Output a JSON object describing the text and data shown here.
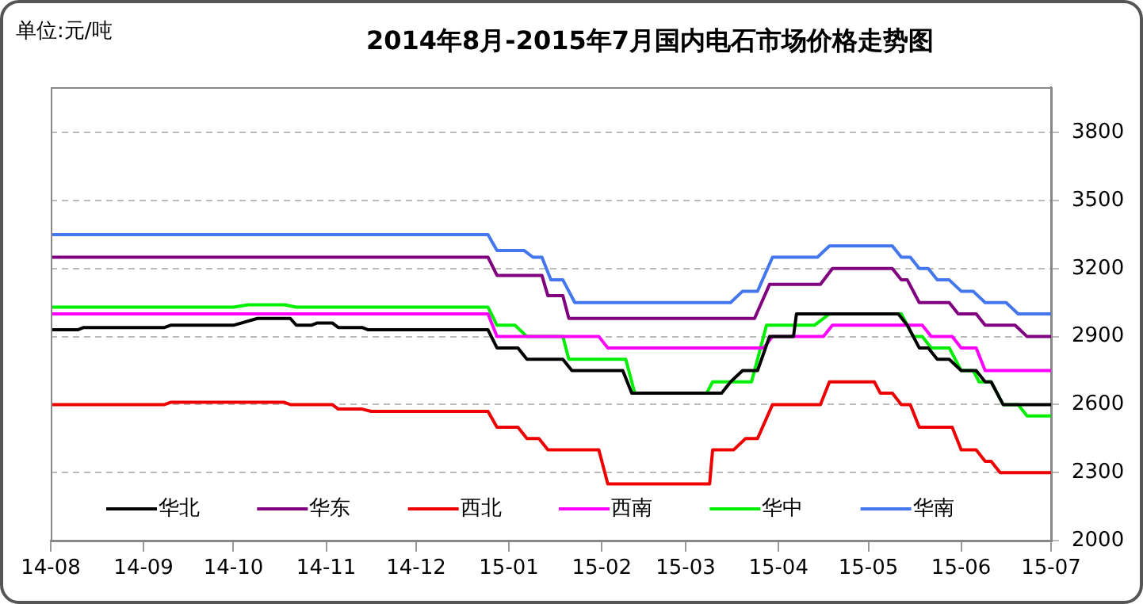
{
  "chart_data": {
    "type": "line",
    "title": "2014年8月-2015年7月国内电石市场价格走势图",
    "ylabel": "单位:元/吨",
    "xlim": [
      "2014-08-01",
      "2015-07-01"
    ],
    "xticks": [
      {
        "value": "2014-08-01",
        "label": "14-08"
      },
      {
        "value": "2014-09-01",
        "label": "14-09"
      },
      {
        "value": "2014-10-01",
        "label": "14-10"
      },
      {
        "value": "2014-11-01",
        "label": "14-11"
      },
      {
        "value": "2014-12-01",
        "label": "14-12"
      },
      {
        "value": "2015-01-01",
        "label": "15-01"
      },
      {
        "value": "2015-02-01",
        "label": "15-02"
      },
      {
        "value": "2015-03-01",
        "label": "15-03"
      },
      {
        "value": "2015-04-01",
        "label": "15-04"
      },
      {
        "value": "2015-05-01",
        "label": "15-05"
      },
      {
        "value": "2015-06-01",
        "label": "15-06"
      },
      {
        "value": "2015-07-01",
        "label": "15-07"
      }
    ],
    "ylim": [
      2000,
      4000
    ],
    "yticks": [
      2000,
      2300,
      2600,
      2900,
      3200,
      3500,
      3800
    ],
    "grid": "y",
    "legend": "bottom",
    "marker": "none",
    "line_style": "solid",
    "series": [
      {
        "name": "华北",
        "color": "#000000",
        "x": [
          "2014-08-01",
          "2014-08-10",
          "2014-08-12",
          "2014-09-08",
          "2014-09-10",
          "2014-10-01",
          "2014-10-09",
          "2014-10-20",
          "2014-10-22",
          "2014-10-27",
          "2014-10-29",
          "2014-11-03",
          "2014-11-05",
          "2014-11-13",
          "2014-11-15",
          "2014-12-25",
          "2014-12-28",
          "2015-01-04",
          "2015-01-07",
          "2015-01-19",
          "2015-01-22",
          "2015-02-08",
          "2015-02-11",
          "2015-03-13",
          "2015-03-16",
          "2015-03-20",
          "2015-03-25",
          "2015-03-29",
          "2015-04-06",
          "2015-04-07",
          "2015-05-11",
          "2015-05-14",
          "2015-05-18",
          "2015-05-21",
          "2015-05-24",
          "2015-05-28",
          "2015-06-01",
          "2015-06-06",
          "2015-06-09",
          "2015-06-11",
          "2015-06-15",
          "2015-07-01"
        ],
        "values": [
          2930,
          2930,
          2940,
          2940,
          2950,
          2950,
          2980,
          2980,
          2950,
          2950,
          2960,
          2960,
          2940,
          2940,
          2930,
          2930,
          2850,
          2850,
          2800,
          2800,
          2750,
          2750,
          2650,
          2650,
          2700,
          2750,
          2750,
          2900,
          2900,
          3000,
          3000,
          2950,
          2850,
          2850,
          2800,
          2800,
          2750,
          2750,
          2700,
          2700,
          2600,
          2600
        ]
      },
      {
        "name": "华东",
        "color": "#800080",
        "x": [
          "2014-08-01",
          "2014-12-25",
          "2014-12-28",
          "2015-01-12",
          "2015-01-14",
          "2015-01-19",
          "2015-01-21",
          "2015-03-24",
          "2015-03-29",
          "2015-04-15",
          "2015-04-19",
          "2015-05-09",
          "2015-05-12",
          "2015-05-14",
          "2015-05-18",
          "2015-05-28",
          "2015-05-31",
          "2015-06-06",
          "2015-06-09",
          "2015-06-19",
          "2015-06-23",
          "2015-07-01"
        ],
        "values": [
          3250,
          3250,
          3170,
          3170,
          3080,
          3080,
          2980,
          2980,
          3130,
          3130,
          3200,
          3200,
          3150,
          3150,
          3050,
          3050,
          3000,
          3000,
          2950,
          2950,
          2900,
          2900
        ]
      },
      {
        "name": "西北",
        "color": "#ee0000",
        "x": [
          "2014-08-01",
          "2014-09-08",
          "2014-09-10",
          "2014-10-18",
          "2014-10-20",
          "2014-11-03",
          "2014-11-05",
          "2014-11-13",
          "2014-11-16",
          "2014-12-25",
          "2014-12-28",
          "2015-01-04",
          "2015-01-07",
          "2015-01-11",
          "2015-01-14",
          "2015-01-31",
          "2015-02-03",
          "2015-03-09",
          "2015-03-10",
          "2015-03-17",
          "2015-03-21",
          "2015-03-25",
          "2015-03-30",
          "2015-04-15",
          "2015-04-18",
          "2015-05-03",
          "2015-05-05",
          "2015-05-09",
          "2015-05-12",
          "2015-05-15",
          "2015-05-18",
          "2015-05-29",
          "2015-06-01",
          "2015-06-06",
          "2015-06-09",
          "2015-06-11",
          "2015-06-14",
          "2015-07-01"
        ],
        "values": [
          2600,
          2600,
          2610,
          2610,
          2600,
          2600,
          2580,
          2580,
          2570,
          2570,
          2500,
          2500,
          2450,
          2450,
          2400,
          2400,
          2250,
          2250,
          2400,
          2400,
          2450,
          2450,
          2600,
          2600,
          2700,
          2700,
          2650,
          2650,
          2600,
          2600,
          2500,
          2500,
          2400,
          2400,
          2350,
          2350,
          2300,
          2300
        ]
      },
      {
        "name": "西南",
        "color": "#ff00ff",
        "x": [
          "2014-08-01",
          "2014-12-25",
          "2014-12-28",
          "2015-01-31",
          "2015-02-03",
          "2015-03-27",
          "2015-03-30",
          "2015-04-16",
          "2015-04-19",
          "2015-05-19",
          "2015-05-22",
          "2015-05-29",
          "2015-06-01",
          "2015-06-06",
          "2015-06-09",
          "2015-07-01"
        ],
        "values": [
          3000,
          3000,
          2900,
          2900,
          2850,
          2850,
          2900,
          2900,
          2950,
          2950,
          2900,
          2900,
          2850,
          2850,
          2750,
          2750
        ]
      },
      {
        "name": "华中",
        "color": "#00ee00",
        "x": [
          "2014-08-01",
          "2014-10-01",
          "2014-10-06",
          "2014-10-18",
          "2014-10-22",
          "2014-12-25",
          "2014-12-28",
          "2015-01-03",
          "2015-01-07",
          "2015-01-19",
          "2015-01-21",
          "2015-02-09",
          "2015-02-12",
          "2015-03-08",
          "2015-03-10",
          "2015-03-23",
          "2015-03-28",
          "2015-04-13",
          "2015-04-18",
          "2015-05-12",
          "2015-05-16",
          "2015-05-19",
          "2015-05-22",
          "2015-05-28",
          "2015-06-01",
          "2015-06-05",
          "2015-06-07",
          "2015-06-11",
          "2015-06-15",
          "2015-06-20",
          "2015-06-23",
          "2015-07-01"
        ],
        "values": [
          3030,
          3030,
          3040,
          3040,
          3030,
          3030,
          2950,
          2950,
          2900,
          2900,
          2800,
          2800,
          2650,
          2650,
          2700,
          2700,
          2950,
          2950,
          3000,
          3000,
          2900,
          2900,
          2850,
          2850,
          2750,
          2750,
          2700,
          2700,
          2600,
          2600,
          2550,
          2550
        ]
      },
      {
        "name": "华南",
        "color": "#4477ee",
        "x": [
          "2014-08-01",
          "2014-12-25",
          "2014-12-28",
          "2015-01-06",
          "2015-01-09",
          "2015-01-12",
          "2015-01-15",
          "2015-01-19",
          "2015-01-23",
          "2015-03-16",
          "2015-03-20",
          "2015-03-25",
          "2015-03-30",
          "2015-04-14",
          "2015-04-18",
          "2015-05-09",
          "2015-05-12",
          "2015-05-15",
          "2015-05-18",
          "2015-05-21",
          "2015-05-24",
          "2015-05-28",
          "2015-06-01",
          "2015-06-05",
          "2015-06-09",
          "2015-06-16",
          "2015-06-20",
          "2015-07-01"
        ],
        "values": [
          3350,
          3350,
          3280,
          3280,
          3250,
          3250,
          3150,
          3150,
          3050,
          3050,
          3100,
          3100,
          3250,
          3250,
          3300,
          3300,
          3250,
          3250,
          3200,
          3200,
          3150,
          3150,
          3100,
          3100,
          3050,
          3050,
          3000,
          3000
        ]
      }
    ]
  }
}
